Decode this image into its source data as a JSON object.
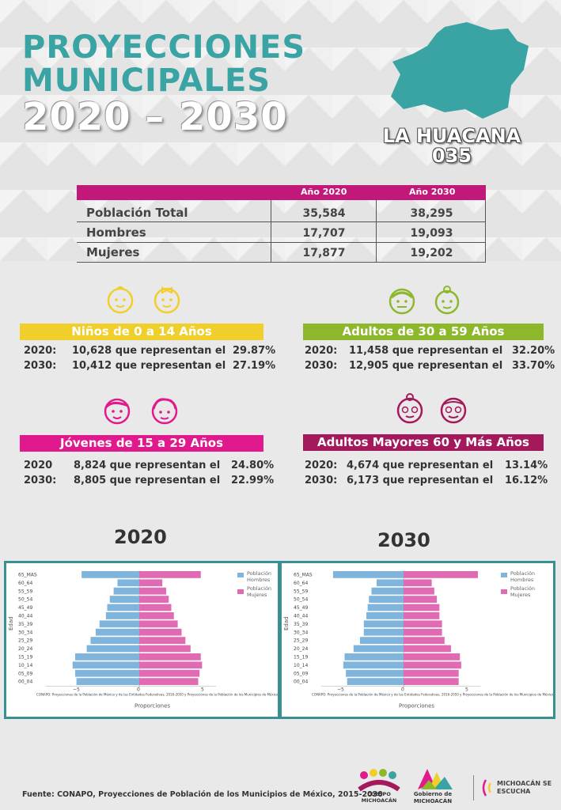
{
  "header": {
    "line1": "PROYECCIONES",
    "line2": "MUNICIPALES",
    "line3": "2020 – 2030",
    "municipality": "LA HUACANA",
    "code": "035"
  },
  "colors": {
    "teal": "#3aa3a4",
    "magenta": "#c2187a",
    "yellow": "#f0cf2a",
    "green": "#8db82c",
    "pink": "#e01a8c",
    "maroon": "#a3195b",
    "bar_men": "#7fb5dc",
    "bar_women": "#e06bb3"
  },
  "table": {
    "col1": "Año 2020",
    "col2": "Año 2030",
    "rows": [
      {
        "label": "Población Total",
        "v2020": "35,584",
        "v2030": "38,295"
      },
      {
        "label": "Hombres",
        "v2020": "17,707",
        "v2030": "19,093"
      },
      {
        "label": "Mujeres",
        "v2020": "17,877",
        "v2030": "19,202"
      }
    ]
  },
  "groups": {
    "ninos": {
      "title": "Niños de 0 a 14 Años",
      "y1": "2020:",
      "t1": "10,628 que representan el",
      "p1": "29.87%",
      "y2": "2030:",
      "t2": "10,412 que representan el",
      "p2": "27.19%"
    },
    "adultos": {
      "title": "Adultos de 30 a 59 Años",
      "y1": "2020:",
      "t1": "11,458 que representan el",
      "p1": "32.20%",
      "y2": "2030:",
      "t2": "12,905 que representan el",
      "p2": "33.70%"
    },
    "jovenes": {
      "title": "Jóvenes de 15 a 29 Años",
      "y1": "2020",
      "t1": "8,824 que representan el",
      "p1": "24.80%",
      "y2": "2030:",
      "t2": "8,805 que representan el",
      "p2": "22.99%"
    },
    "mayores": {
      "title": "Adultos Mayores  60 y Más Años",
      "y1": "2020:",
      "t1": "4,674 que representan el",
      "p1": "13.14%",
      "y2": "2030:",
      "t2": "6,173 que representan el",
      "p2": "16.12%"
    }
  },
  "charts": {
    "year_2020": "2020",
    "year_2030": "2030"
  },
  "chart_data": [
    {
      "type": "bar",
      "orientation": "horizontal",
      "year": "2020",
      "categories": [
        "00_04",
        "05_09",
        "10_14",
        "15_19",
        "20_24",
        "25_29",
        "30_34",
        "35_39",
        "40_44",
        "45_49",
        "50_54",
        "55_59",
        "60_64",
        "65_MAS"
      ],
      "series": [
        {
          "name": "Población Hombres",
          "values": [
            -4.9,
            -5.0,
            -5.2,
            -5.0,
            -4.1,
            -3.8,
            -3.4,
            -3.1,
            -2.6,
            -2.5,
            -2.3,
            -2.0,
            -1.7,
            -4.5
          ]
        },
        {
          "name": "Población Mujeres",
          "values": [
            4.6,
            4.7,
            4.9,
            4.8,
            4.0,
            3.6,
            3.3,
            3.0,
            2.7,
            2.5,
            2.3,
            2.1,
            1.8,
            4.8
          ]
        }
      ],
      "xlabel": "Proporciones",
      "ylabel": "Edad",
      "xticks": [
        "−5",
        "0",
        "5"
      ],
      "xlim": [
        -5.5,
        5.5
      ],
      "legend": "top-right",
      "note": "CONAPO: Proyecciones de la Población de México y de las Entidades Federativas, 2016-2050 y Proyecciones de la Población de los Municipios de México"
    },
    {
      "type": "bar",
      "orientation": "horizontal",
      "year": "2030",
      "categories": [
        "00_04",
        "05_09",
        "10_14",
        "15_19",
        "20_24",
        "25_29",
        "30_34",
        "35_39",
        "40_44",
        "45_49",
        "50_54",
        "55_59",
        "60_64",
        "65_MAS"
      ],
      "series": [
        {
          "name": "Población Hombres",
          "values": [
            -4.4,
            -4.5,
            -4.7,
            -4.6,
            -3.9,
            -3.4,
            -3.1,
            -3.1,
            -2.9,
            -2.8,
            -2.7,
            -2.5,
            -2.1,
            -5.5
          ]
        },
        {
          "name": "Población Mujeres",
          "values": [
            4.3,
            4.3,
            4.5,
            4.4,
            3.7,
            3.2,
            3.0,
            3.0,
            2.8,
            2.8,
            2.6,
            2.4,
            2.2,
            5.8
          ]
        }
      ],
      "xlabel": "Proporciones",
      "ylabel": "Edad",
      "xticks": [
        "−5",
        "0",
        "5"
      ],
      "xlim": [
        -5.5,
        5.5
      ],
      "legend": "top-right",
      "note": "CONAPO: Proyecciones de la Población de México y de las Entidades Federativas, 2016-2050 y Proyecciones de la Población de los Municipios de México"
    }
  ],
  "legend": {
    "men_l1": "Población",
    "men_l2": "Hombres",
    "women_l1": "Población",
    "women_l2": "Mujeres"
  },
  "footer": {
    "source": "Fuente: CONAPO, Proyecciones de Población de los Municipios de México, 2015-2030",
    "logo1": "COESPO MICHOACÁN",
    "logo2": "Gobierno de MICHOACÁN",
    "logo3": "MICHOACÁN SE ESCUCHA"
  }
}
